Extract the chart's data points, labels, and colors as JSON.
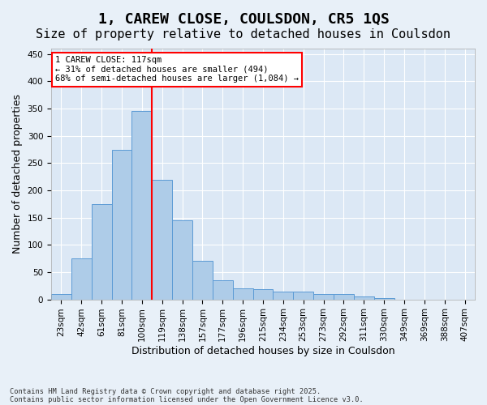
{
  "title": "1, CAREW CLOSE, COULSDON, CR5 1QS",
  "subtitle": "Size of property relative to detached houses in Coulsdon",
  "xlabel": "Distribution of detached houses by size in Coulsdon",
  "ylabel": "Number of detached properties",
  "footnote1": "Contains HM Land Registry data © Crown copyright and database right 2025.",
  "footnote2": "Contains public sector information licensed under the Open Government Licence v3.0.",
  "bin_labels": [
    "23sqm",
    "42sqm",
    "61sqm",
    "81sqm",
    "100sqm",
    "119sqm",
    "138sqm",
    "157sqm",
    "177sqm",
    "196sqm",
    "215sqm",
    "234sqm",
    "253sqm",
    "273sqm",
    "292sqm",
    "311sqm",
    "330sqm",
    "349sqm",
    "369sqm",
    "388sqm",
    "407sqm"
  ],
  "bar_values": [
    10,
    75,
    175,
    275,
    345,
    220,
    145,
    70,
    35,
    20,
    18,
    14,
    14,
    10,
    10,
    5,
    3,
    0,
    0,
    0,
    0
  ],
  "bar_color": "#aecce8",
  "bar_edge_color": "#5b9bd5",
  "vline_x": 4.5,
  "vline_color": "red",
  "annotation_text": "1 CAREW CLOSE: 117sqm\n← 31% of detached houses are smaller (494)\n68% of semi-detached houses are larger (1,084) →",
  "annotation_box_color": "white",
  "annotation_box_edge_color": "red",
  "ylim": [
    0,
    460
  ],
  "yticks": [
    0,
    50,
    100,
    150,
    200,
    250,
    300,
    350,
    400,
    450
  ],
  "background_color": "#e8f0f8",
  "plot_background_color": "#dce8f5",
  "grid_color": "white",
  "title_fontsize": 13,
  "subtitle_fontsize": 11,
  "axis_fontsize": 9,
  "tick_fontsize": 7.5
}
